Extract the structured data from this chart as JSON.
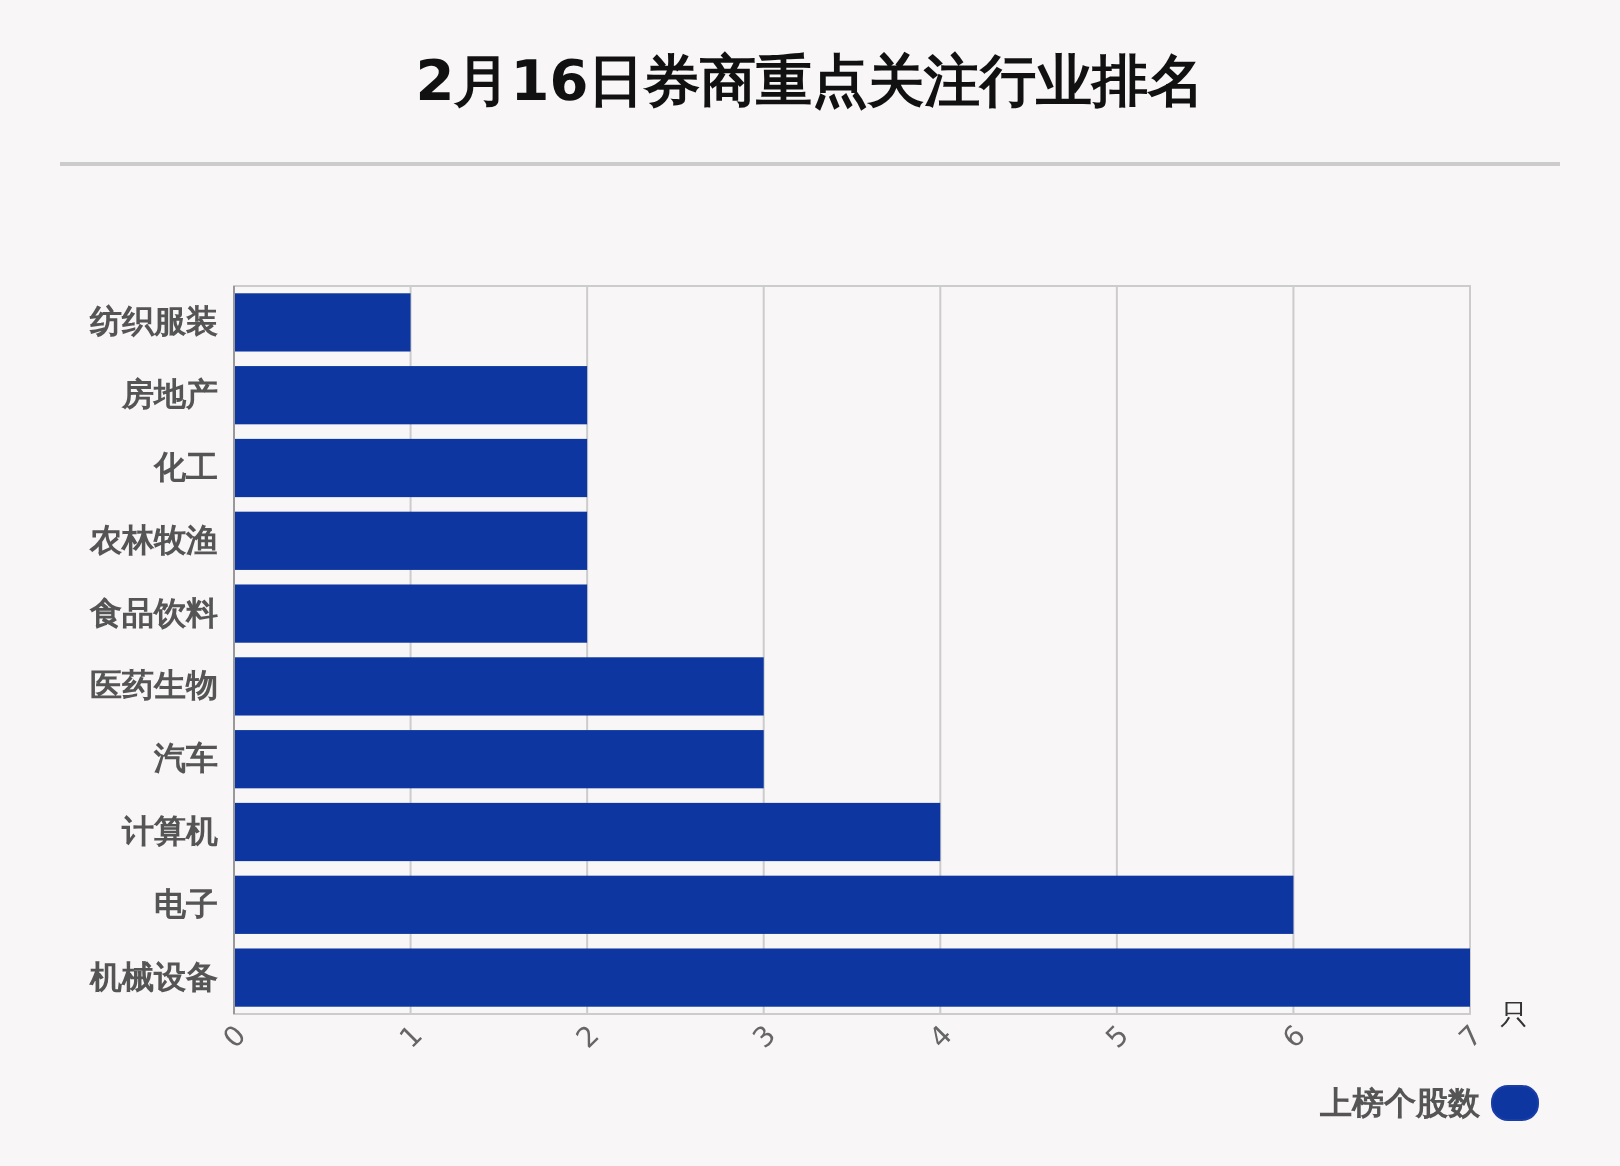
{
  "chart_data": {
    "type": "bar",
    "orientation": "horizontal",
    "title": "2月16日券商重点关注行业排名",
    "xlabel": "只",
    "categories": [
      "纺织服装",
      "房地产",
      "化工",
      "农林牧渔",
      "食品饮料",
      "医药生物",
      "汽车",
      "计算机",
      "电子",
      "机械设备"
    ],
    "series": [
      {
        "name": "上榜个股数",
        "color": "#0d36a0",
        "values": [
          1,
          2,
          2,
          2,
          2,
          3,
          3,
          4,
          6,
          7
        ]
      }
    ],
    "xlim": [
      0,
      7
    ],
    "xticks": [
      0,
      1,
      2,
      3,
      4,
      5,
      6,
      7
    ],
    "grid": "x",
    "legend": "bottom right"
  }
}
